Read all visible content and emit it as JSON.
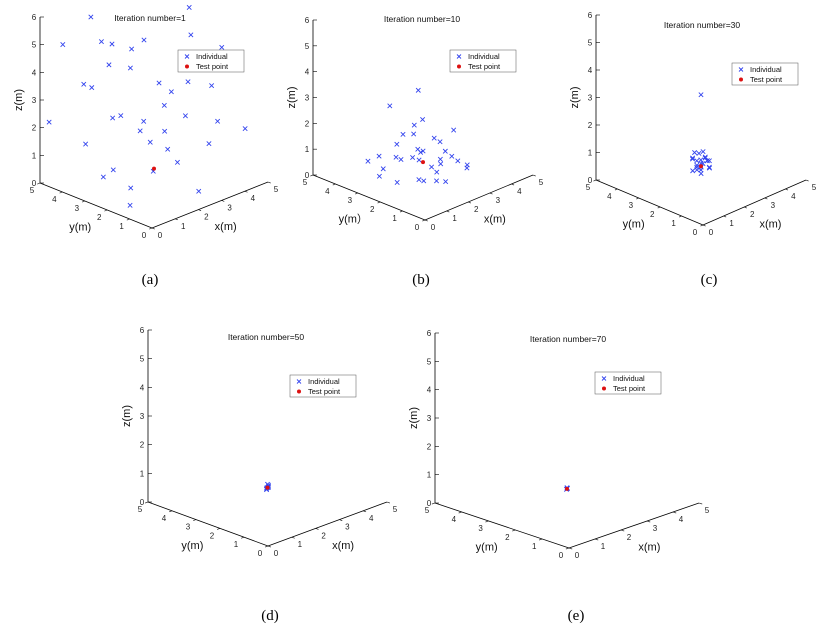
{
  "figure": {
    "captions": [
      "(a)",
      "(b)",
      "(c)",
      "(d)",
      "(e)"
    ]
  },
  "colors": {
    "individual": "#3344ee",
    "test_point": "#dd1111",
    "axis": "#000000"
  },
  "chart_data": [
    {
      "type": "scatter3d",
      "title": "Iteration number=1",
      "xlabel": "x(m)",
      "ylabel": "y(m)",
      "zlabel": "z(m)",
      "xticks": [
        "0",
        "1",
        "2",
        "3",
        "4",
        "5"
      ],
      "yticks": [
        "0",
        "1",
        "2",
        "3",
        "4",
        "5"
      ],
      "zticks": [
        "0",
        "1",
        "2",
        "3",
        "4",
        "5",
        "6"
      ],
      "xlim": [
        0,
        5
      ],
      "ylim": [
        0,
        5
      ],
      "zlim": [
        0,
        6
      ],
      "legend": [
        "Individual",
        "Test point"
      ],
      "test_point": [
        2.5,
        2.5,
        0.5
      ],
      "individuals": [
        [
          0.5,
          4.5,
          5.0
        ],
        [
          1.2,
          3.5,
          5.2
        ],
        [
          2.0,
          4.8,
          5.4
        ],
        [
          3.5,
          4.0,
          6.0
        ],
        [
          4.5,
          3.0,
          5.5
        ],
        [
          1.0,
          2.0,
          4.8
        ],
        [
          2.5,
          3.5,
          4.5
        ],
        [
          3.8,
          2.2,
          5.0
        ],
        [
          4.8,
          1.0,
          4.2
        ],
        [
          0.3,
          3.0,
          4.0
        ],
        [
          1.8,
          1.0,
          4.0
        ],
        [
          3.0,
          1.5,
          3.8
        ],
        [
          4.0,
          4.5,
          4.0
        ],
        [
          2.2,
          4.2,
          3.8
        ],
        [
          1.5,
          4.6,
          3.2
        ],
        [
          0.8,
          1.2,
          3.2
        ],
        [
          3.2,
          3.0,
          3.2
        ],
        [
          4.5,
          2.0,
          3.0
        ],
        [
          2.6,
          1.2,
          2.8
        ],
        [
          1.2,
          3.0,
          2.6
        ],
        [
          3.6,
          0.8,
          2.4
        ],
        [
          0.2,
          4.8,
          2.2
        ],
        [
          2.0,
          2.6,
          2.0
        ],
        [
          4.2,
          3.8,
          1.8
        ],
        [
          3.0,
          4.5,
          1.6
        ],
        [
          1.0,
          4.0,
          1.4
        ],
        [
          2.8,
          2.2,
          1.2
        ],
        [
          4.0,
          1.6,
          1.2
        ],
        [
          1.6,
          1.6,
          1.0
        ],
        [
          3.4,
          3.6,
          0.8
        ],
        [
          0.8,
          3.0,
          0.6
        ],
        [
          2.4,
          0.4,
          0.4
        ],
        [
          4.6,
          4.2,
          0.6
        ],
        [
          1.4,
          2.4,
          0.2
        ],
        [
          3.8,
          2.8,
          0.2
        ],
        [
          2.0,
          3.8,
          0.2
        ],
        [
          0.6,
          1.6,
          0.1
        ],
        [
          4.4,
          0.4,
          2.0
        ],
        [
          3.2,
          0.2,
          5.4
        ],
        [
          0.4,
          2.2,
          5.8
        ]
      ]
    },
    {
      "type": "scatter3d",
      "title": "Iteration number=10",
      "xlabel": "x(m)",
      "ylabel": "y(m）",
      "zlabel": "z(m)",
      "xticks": [
        "0",
        "1",
        "2",
        "3",
        "4",
        "5"
      ],
      "yticks": [
        "0",
        "1",
        "2",
        "3",
        "4",
        "5"
      ],
      "zticks": [
        "0",
        "1",
        "2",
        "3",
        "4",
        "5",
        "6"
      ],
      "xlim": [
        0,
        5
      ],
      "ylim": [
        0,
        5
      ],
      "zlim": [
        0,
        6
      ],
      "legend": [
        "Individual",
        "Test point"
      ],
      "test_point": [
        2.5,
        2.5,
        0.5
      ],
      "individuals": [
        [
          2.0,
          3.5,
          2.5
        ],
        [
          2.8,
          3.0,
          3.0
        ],
        [
          2.2,
          2.6,
          2.0
        ],
        [
          3.4,
          2.0,
          1.6
        ],
        [
          1.6,
          2.8,
          1.4
        ],
        [
          2.6,
          1.6,
          1.2
        ],
        [
          3.0,
          3.4,
          1.1
        ],
        [
          1.8,
          2.0,
          1.0
        ],
        [
          2.4,
          2.4,
          1.0
        ],
        [
          3.6,
          2.8,
          0.8
        ],
        [
          1.4,
          3.4,
          0.8
        ],
        [
          2.0,
          3.0,
          0.6
        ],
        [
          3.2,
          1.2,
          0.6
        ],
        [
          2.8,
          2.0,
          0.5
        ],
        [
          1.6,
          1.6,
          0.4
        ],
        [
          2.2,
          1.2,
          0.3
        ],
        [
          3.4,
          3.6,
          0.3
        ],
        [
          1.2,
          2.4,
          0.2
        ],
        [
          2.6,
          3.8,
          0.2
        ],
        [
          3.0,
          2.6,
          0.1
        ],
        [
          1.8,
          3.6,
          0.1
        ],
        [
          2.4,
          1.8,
          0.05
        ],
        [
          3.8,
          2.2,
          0.2
        ],
        [
          1.0,
          3.0,
          0.3
        ],
        [
          2.0,
          2.2,
          0.1
        ],
        [
          2.9,
          1.6,
          0.9
        ],
        [
          1.5,
          2.0,
          1.2
        ],
        [
          3.2,
          2.4,
          0.4
        ],
        [
          2.3,
          3.2,
          1.4
        ],
        [
          2.7,
          2.8,
          0.7
        ],
        [
          2.1,
          1.5,
          0.6
        ],
        [
          3.6,
          1.6,
          0.2
        ],
        [
          1.3,
          3.8,
          0.5
        ],
        [
          2.5,
          2.0,
          1.6
        ],
        [
          3.0,
          3.0,
          1.8
        ]
      ]
    },
    {
      "type": "scatter3d",
      "title": "Iteration number=30",
      "xlabel": "x(m)",
      "ylabel": "y(m)",
      "zlabel": "z(m)",
      "xticks": [
        "0",
        "1",
        "2",
        "3",
        "4",
        "5"
      ],
      "yticks": [
        "0",
        "1",
        "2",
        "3",
        "4",
        "5"
      ],
      "zticks": [
        "0",
        "1",
        "2",
        "3",
        "4",
        "5",
        "6"
      ],
      "xlim": [
        0,
        5
      ],
      "ylim": [
        0,
        5
      ],
      "zlim": [
        0,
        6
      ],
      "legend": [
        "Individual",
        "Test point"
      ],
      "test_point": [
        2.5,
        2.5,
        0.5
      ],
      "individuals": [
        [
          2.5,
          2.5,
          3.1
        ],
        [
          2.4,
          2.6,
          0.7
        ],
        [
          2.6,
          2.4,
          0.8
        ],
        [
          2.3,
          2.5,
          0.6
        ],
        [
          2.7,
          2.6,
          0.5
        ],
        [
          2.5,
          2.3,
          0.9
        ],
        [
          2.5,
          2.7,
          0.4
        ],
        [
          2.2,
          2.4,
          0.5
        ],
        [
          2.8,
          2.5,
          0.6
        ],
        [
          2.4,
          2.8,
          0.7
        ],
        [
          2.6,
          2.2,
          0.5
        ],
        [
          2.3,
          2.7,
          0.8
        ],
        [
          2.7,
          2.3,
          0.7
        ],
        [
          2.5,
          2.5,
          0.6
        ],
        [
          2.4,
          2.4,
          0.3
        ],
        [
          2.6,
          2.6,
          0.3
        ],
        [
          2.2,
          2.6,
          0.4
        ],
        [
          2.8,
          2.4,
          0.4
        ],
        [
          2.5,
          2.8,
          0.9
        ],
        [
          2.5,
          2.2,
          0.8
        ],
        [
          2.3,
          2.3,
          0.6
        ],
        [
          2.7,
          2.7,
          0.6
        ],
        [
          2.4,
          2.5,
          1.0
        ],
        [
          2.6,
          2.5,
          1.0
        ]
      ]
    },
    {
      "type": "scatter3d",
      "title": "Iteration number=50",
      "xlabel": "x(m)",
      "ylabel": "y(m)",
      "zlabel": "z(m)",
      "xticks": [
        "0",
        "1",
        "2",
        "3",
        "4",
        "5"
      ],
      "yticks": [
        "0",
        "1",
        "2",
        "3",
        "4",
        "5"
      ],
      "zticks": [
        "0",
        "1",
        "2",
        "3",
        "4",
        "5",
        "6"
      ],
      "xlim": [
        0,
        5
      ],
      "ylim": [
        0,
        5
      ],
      "zlim": [
        0,
        6
      ],
      "legend": [
        "Individual",
        "Test point"
      ],
      "test_point": [
        2.5,
        2.5,
        0.5
      ],
      "individuals": [
        [
          2.5,
          2.5,
          0.5
        ],
        [
          2.52,
          2.48,
          0.55
        ],
        [
          2.48,
          2.52,
          0.45
        ],
        [
          2.5,
          2.46,
          0.6
        ],
        [
          2.46,
          2.5,
          0.5
        ],
        [
          2.54,
          2.5,
          0.5
        ],
        [
          2.5,
          2.54,
          0.42
        ],
        [
          2.5,
          2.5,
          0.62
        ]
      ]
    },
    {
      "type": "scatter3d",
      "title": "Iteration number=70",
      "xlabel": "x(m)",
      "ylabel": "y(m)",
      "zlabel": "z(m)",
      "xticks": [
        "0",
        "1",
        "2",
        "3",
        "4",
        "5"
      ],
      "yticks": [
        "0",
        "1",
        "2",
        "3",
        "4",
        "5"
      ],
      "zticks": [
        "0",
        "1",
        "2",
        "3",
        "4",
        "5",
        "6"
      ],
      "xlim": [
        0,
        5
      ],
      "ylim": [
        0,
        5
      ],
      "zlim": [
        0,
        6
      ],
      "legend": [
        "Individual",
        "Test point"
      ],
      "test_point": [
        2.5,
        2.5,
        0.5
      ],
      "individuals": [
        [
          2.5,
          2.5,
          0.5
        ],
        [
          2.51,
          2.49,
          0.52
        ],
        [
          2.49,
          2.51,
          0.48
        ],
        [
          2.5,
          2.5,
          0.54
        ]
      ]
    }
  ]
}
